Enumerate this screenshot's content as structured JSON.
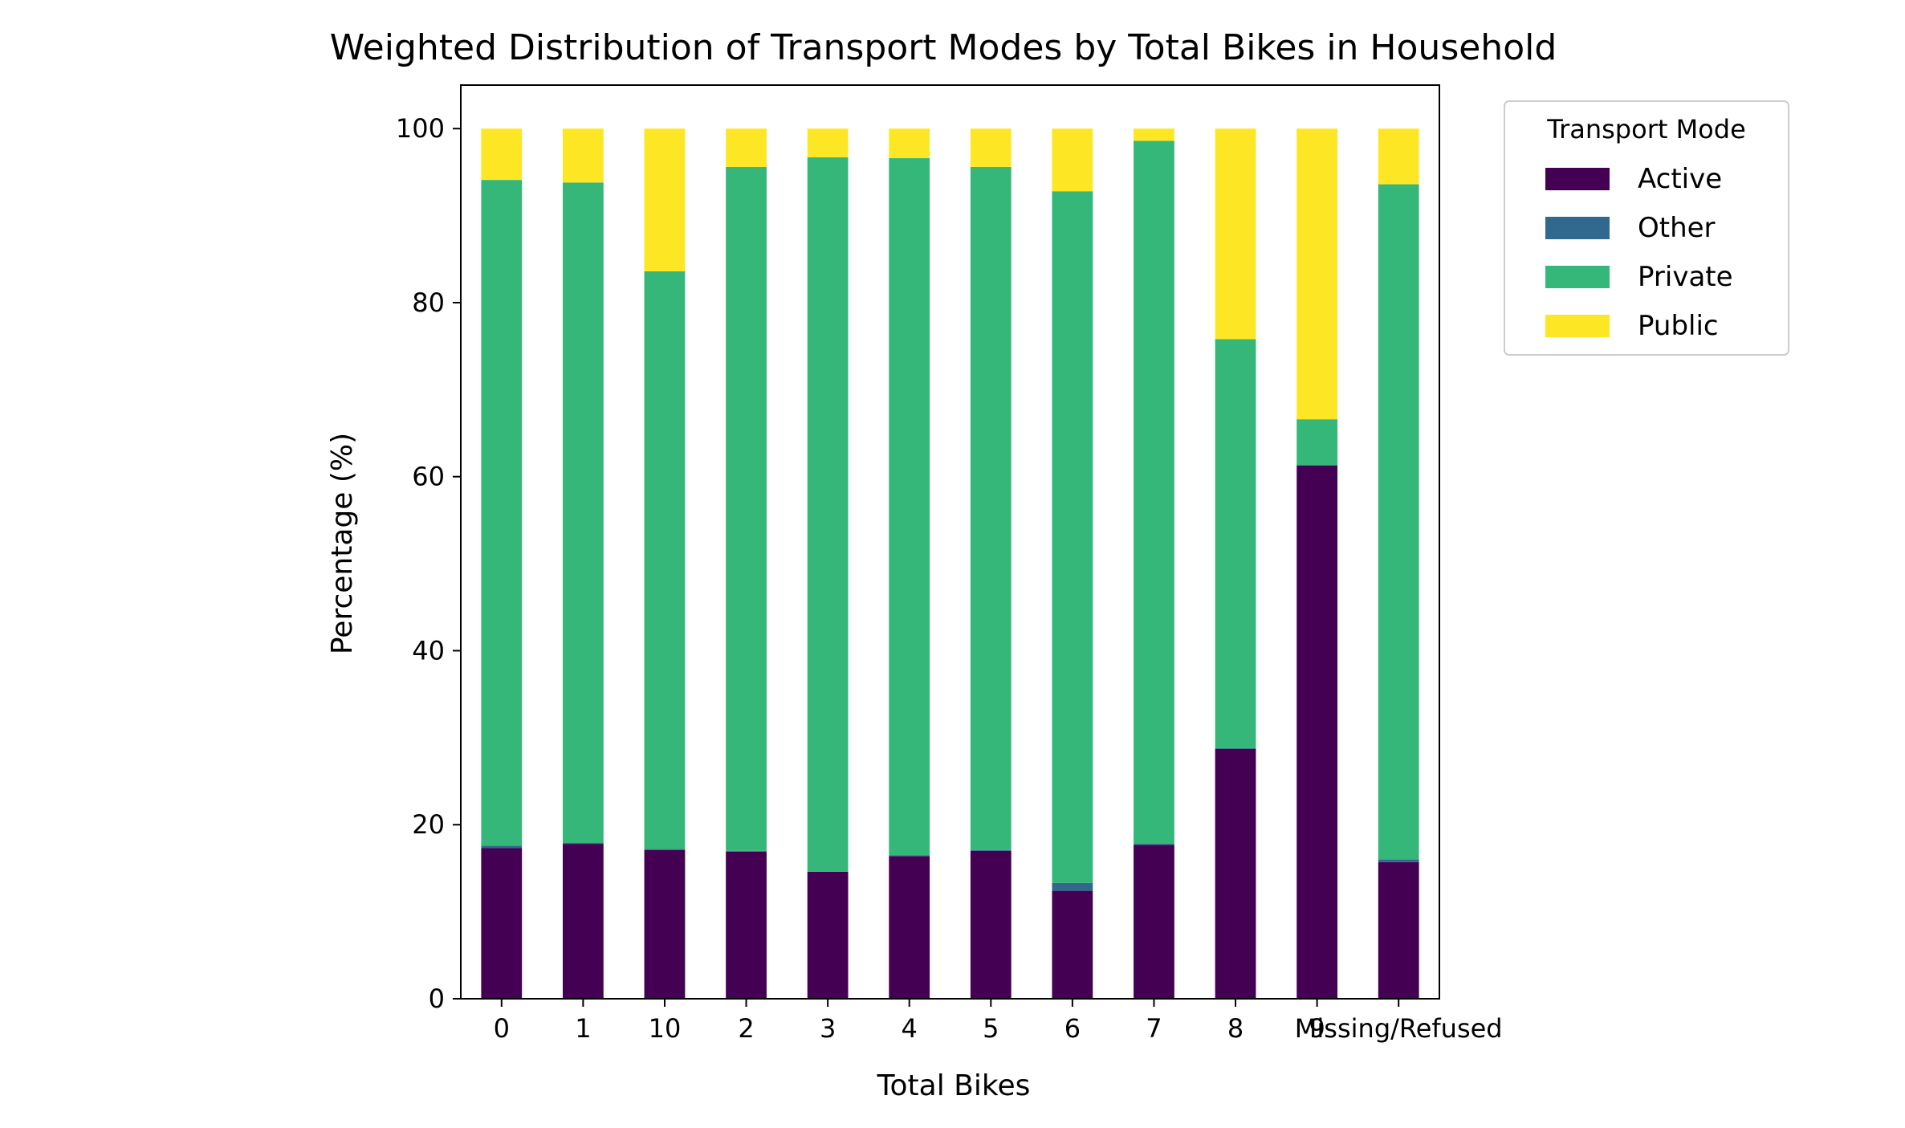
{
  "chart_data": {
    "type": "bar",
    "stacked": true,
    "title": "Weighted Distribution of Transport Modes by Total Bikes in Household",
    "xlabel": "Total Bikes",
    "ylabel": "Percentage (%)",
    "ylim": [
      0,
      105
    ],
    "yticks": [
      0,
      20,
      40,
      60,
      80,
      100
    ],
    "grid": false,
    "legend": {
      "title": "Transport Mode",
      "placement": "outside-upper-right"
    },
    "categories": [
      "0",
      "1",
      "10",
      "2",
      "3",
      "4",
      "5",
      "6",
      "7",
      "8",
      "9",
      "Missing/Refused"
    ],
    "series": [
      {
        "name": "Active",
        "color": "#440154",
        "values": [
          17.3,
          17.8,
          17.1,
          16.9,
          14.6,
          16.4,
          17.0,
          12.4,
          17.7,
          28.7,
          61.3,
          15.7
        ]
      },
      {
        "name": "Other",
        "color": "#31688e",
        "values": [
          0.3,
          0.1,
          0.1,
          0.1,
          0.0,
          0.1,
          0.1,
          0.9,
          0.1,
          0.1,
          0.0,
          0.3
        ]
      },
      {
        "name": "Private",
        "color": "#35b779",
        "values": [
          76.5,
          75.9,
          66.4,
          78.6,
          82.1,
          80.1,
          78.5,
          79.5,
          80.8,
          47.0,
          5.3,
          77.6
        ]
      },
      {
        "name": "Public",
        "color": "#fde725",
        "values": [
          5.9,
          6.2,
          16.4,
          4.4,
          3.3,
          3.4,
          4.4,
          7.2,
          1.4,
          24.2,
          33.4,
          6.4
        ]
      }
    ]
  }
}
